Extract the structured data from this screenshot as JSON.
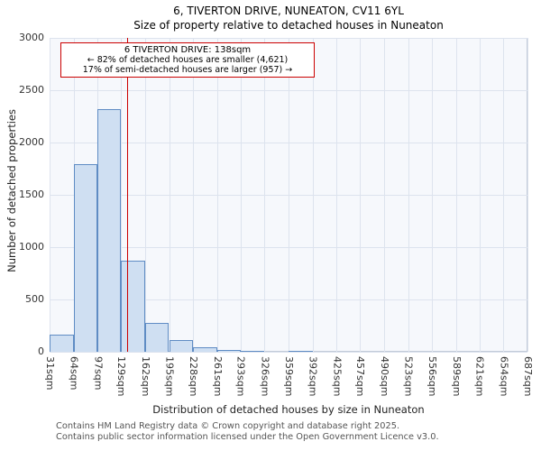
{
  "title": "6, TIVERTON DRIVE, NUNEATON, CV11 6YL",
  "subtitle": "Size of property relative to detached houses in Nuneaton",
  "annotation": {
    "line1": "6 TIVERTON DRIVE: 138sqm",
    "line2": "← 82% of detached houses are smaller (4,621)",
    "line3": "17% of semi-detached houses are larger (957) →"
  },
  "footer": {
    "line1": "Contains HM Land Registry data © Crown copyright and database right 2025.",
    "line2": "Contains public sector information licensed under the Open Government Licence v3.0."
  },
  "chart_data": {
    "type": "bar",
    "title": "6, TIVERTON DRIVE, NUNEATON, CV11 6YL",
    "subtitle": "Size of property relative to detached houses in Nuneaton",
    "xlabel": "Distribution of detached houses by size in Nuneaton",
    "ylabel": "Number of detached properties",
    "xlim": [
      31,
      687
    ],
    "ylim": [
      0,
      3000
    ],
    "ytick_step": 500,
    "grid": true,
    "bin_edges": [
      31,
      64,
      97,
      129,
      162,
      195,
      228,
      261,
      293,
      326,
      359,
      392,
      425,
      457,
      490,
      523,
      556,
      589,
      621,
      654,
      687
    ],
    "tick_labels": [
      "31sqm",
      "64sqm",
      "97sqm",
      "129sqm",
      "162sqm",
      "195sqm",
      "228sqm",
      "261sqm",
      "293sqm",
      "326sqm",
      "359sqm",
      "392sqm",
      "425sqm",
      "457sqm",
      "490sqm",
      "523sqm",
      "556sqm",
      "589sqm",
      "621sqm",
      "654sqm",
      "687sqm"
    ],
    "values": [
      160,
      1790,
      2320,
      870,
      280,
      110,
      40,
      20,
      10,
      0,
      10,
      0,
      0,
      0,
      0,
      0,
      0,
      0,
      0,
      0
    ],
    "marker": {
      "label": "6 TIVERTON DRIVE",
      "value": 138,
      "unit": "sqm"
    },
    "colors": {
      "bar_fill": "#cfdff2",
      "bar_edge": "#5f8cc4",
      "marker": "#cc0000",
      "grid": "#dde3ee",
      "plot_bg": "#f6f8fc"
    }
  }
}
